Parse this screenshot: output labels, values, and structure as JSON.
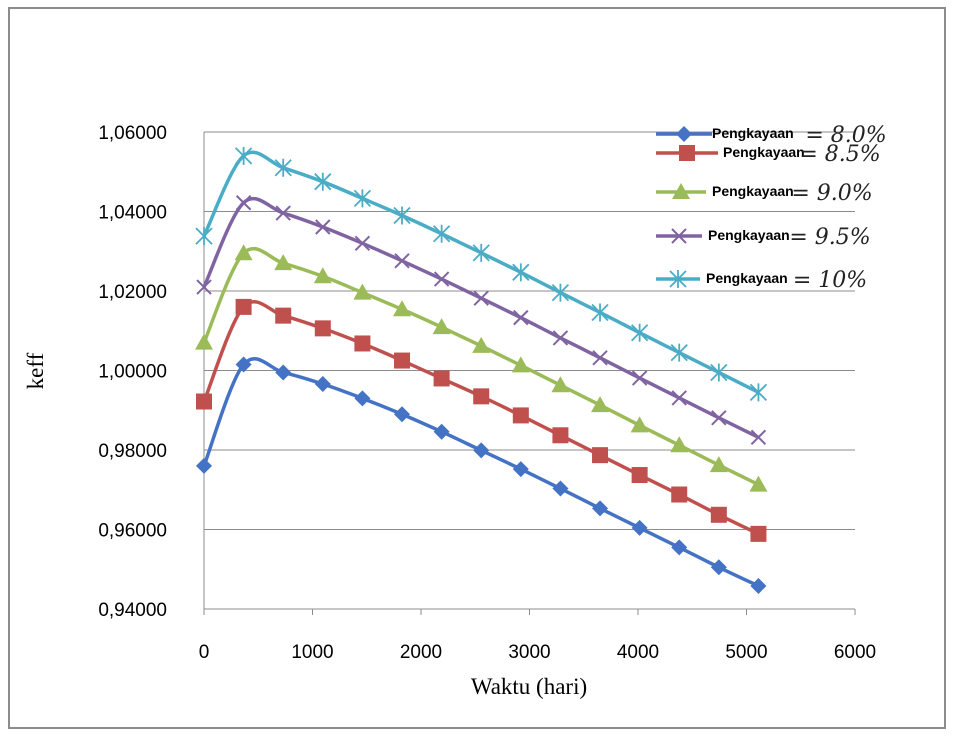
{
  "chart_data": {
    "type": "line",
    "title": "",
    "xlabel": "Waktu (hari)",
    "ylabel": "keff",
    "xlim": [
      0,
      6000
    ],
    "ylim": [
      0.94,
      1.06
    ],
    "x_ticks": [
      "0",
      "1000",
      "2000",
      "3000",
      "4000",
      "5000",
      "6000"
    ],
    "y_ticks": [
      "0,94000",
      "0,96000",
      "0,98000",
      "1,00000",
      "1,02000",
      "1,04000",
      "1,06000"
    ],
    "grid": "horizontal",
    "legend_position": "top-right",
    "x": [
      0,
      365,
      730,
      1095,
      1460,
      1825,
      2190,
      2555,
      2920,
      3285,
      3650,
      4015,
      4380,
      4745,
      5110
    ],
    "series": [
      {
        "name": "Pengkayaan",
        "value_label": "= 8.0%",
        "color": "#4472c4",
        "marker": "diamond",
        "values": [
          0.976,
          1.0015,
          0.9995,
          0.9966,
          0.993,
          0.989,
          0.9846,
          0.9799,
          0.9752,
          0.9703,
          0.9653,
          0.9604,
          0.9555,
          0.9505,
          0.9458
        ]
      },
      {
        "name": "Pengkayaan",
        "value_label": "= 8.5%",
        "color": "#c0504d",
        "marker": "square",
        "values": [
          0.9922,
          1.016,
          1.0138,
          1.0106,
          1.0068,
          1.0025,
          0.998,
          0.9935,
          0.9887,
          0.9837,
          0.9787,
          0.9737,
          0.9688,
          0.9637,
          0.9589
        ]
      },
      {
        "name": "Pengkayaan",
        "value_label": "= 9.0%",
        "color": "#9bbb59",
        "marker": "triangle",
        "values": [
          1.007,
          1.0295,
          1.027,
          1.0237,
          1.0196,
          1.0154,
          1.0109,
          1.0062,
          1.0013,
          0.9963,
          0.9913,
          0.9862,
          0.9812,
          0.9762,
          0.9713
        ]
      },
      {
        "name": "Pengkayaan",
        "value_label": "= 9.5%",
        "color": "#8064a2",
        "marker": "x",
        "values": [
          1.021,
          1.0422,
          1.0396,
          1.0361,
          1.032,
          1.0276,
          1.023,
          1.0182,
          1.0133,
          1.0082,
          1.0032,
          0.9981,
          0.9931,
          0.9881,
          0.9832
        ]
      },
      {
        "name": "Pengkayaan",
        "value_label": "= 10%",
        "color": "#4bacc6",
        "marker": "star",
        "values": [
          1.0338,
          1.054,
          1.051,
          1.0475,
          1.0433,
          1.039,
          1.0344,
          1.0296,
          1.0247,
          1.0196,
          1.0146,
          1.0095,
          1.0045,
          0.9995,
          0.9945
        ]
      }
    ]
  }
}
